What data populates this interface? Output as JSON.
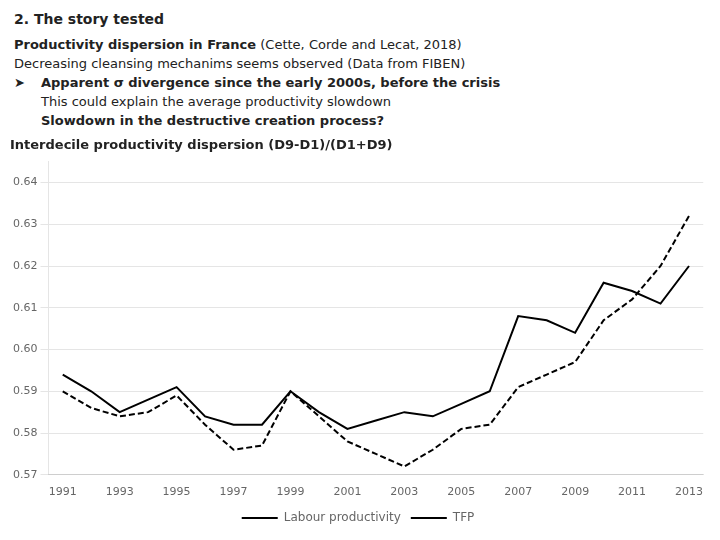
{
  "chart_data": {
    "type": "line",
    "title": "Interdecile productivity dispersion (D9-D1)/(D1+D9)",
    "annotations": [
      [
        "2. The story tested"
      ],
      [
        "Productivity dispersion in France",
        " (Cette, Corde and Lecat, 2018)"
      ],
      [
        "Decreasing cleansing mechanims seems observed (Data from FIBEN)"
      ],
      [
        "➤",
        "Apparent σ divergence since the early 2000s, before the crisis"
      ],
      [
        "This could explain the average productivity slowdown"
      ],
      [
        "Slowdown in the destructive creation process?"
      ]
    ],
    "x": [
      1991,
      1992,
      1993,
      1994,
      1995,
      1996,
      1997,
      1998,
      1999,
      2000,
      2001,
      2002,
      2003,
      2004,
      2005,
      2006,
      2007,
      2008,
      2009,
      2010,
      2011,
      2012,
      2013
    ],
    "series": [
      {
        "name": "Labour productivity",
        "color": "#000000",
        "line_style": "solid",
        "values": [
          0.594,
          0.59,
          0.585,
          0.588,
          0.591,
          0.584,
          0.582,
          0.582,
          0.59,
          0.585,
          0.581,
          0.583,
          0.585,
          0.584,
          0.587,
          0.59,
          0.608,
          0.607,
          0.604,
          0.616,
          0.614,
          0.611,
          0.62
        ]
      },
      {
        "name": "TFP",
        "color": "#000000",
        "line_style": "dashed",
        "values": [
          0.59,
          0.586,
          0.584,
          0.585,
          0.589,
          0.582,
          0.576,
          0.577,
          0.59,
          0.584,
          0.578,
          0.575,
          0.572,
          0.576,
          0.581,
          0.582,
          0.591,
          0.594,
          0.597,
          0.607,
          0.612,
          0.62,
          0.632
        ]
      }
    ],
    "xlim": [
      1990.5,
      2013.5
    ],
    "xticks": [
      1991,
      1993,
      1995,
      1997,
      1999,
      2001,
      2003,
      2005,
      2007,
      2009,
      2011,
      2013
    ],
    "ylim": [
      0.57,
      0.645
    ],
    "yticks": [
      0.57,
      0.58,
      0.59,
      {
        "value": 0.6,
        "label": "0.60"
      },
      0.61,
      0.62,
      0.63,
      0.64
    ],
    "grid": "y",
    "legend": "bottom"
  }
}
